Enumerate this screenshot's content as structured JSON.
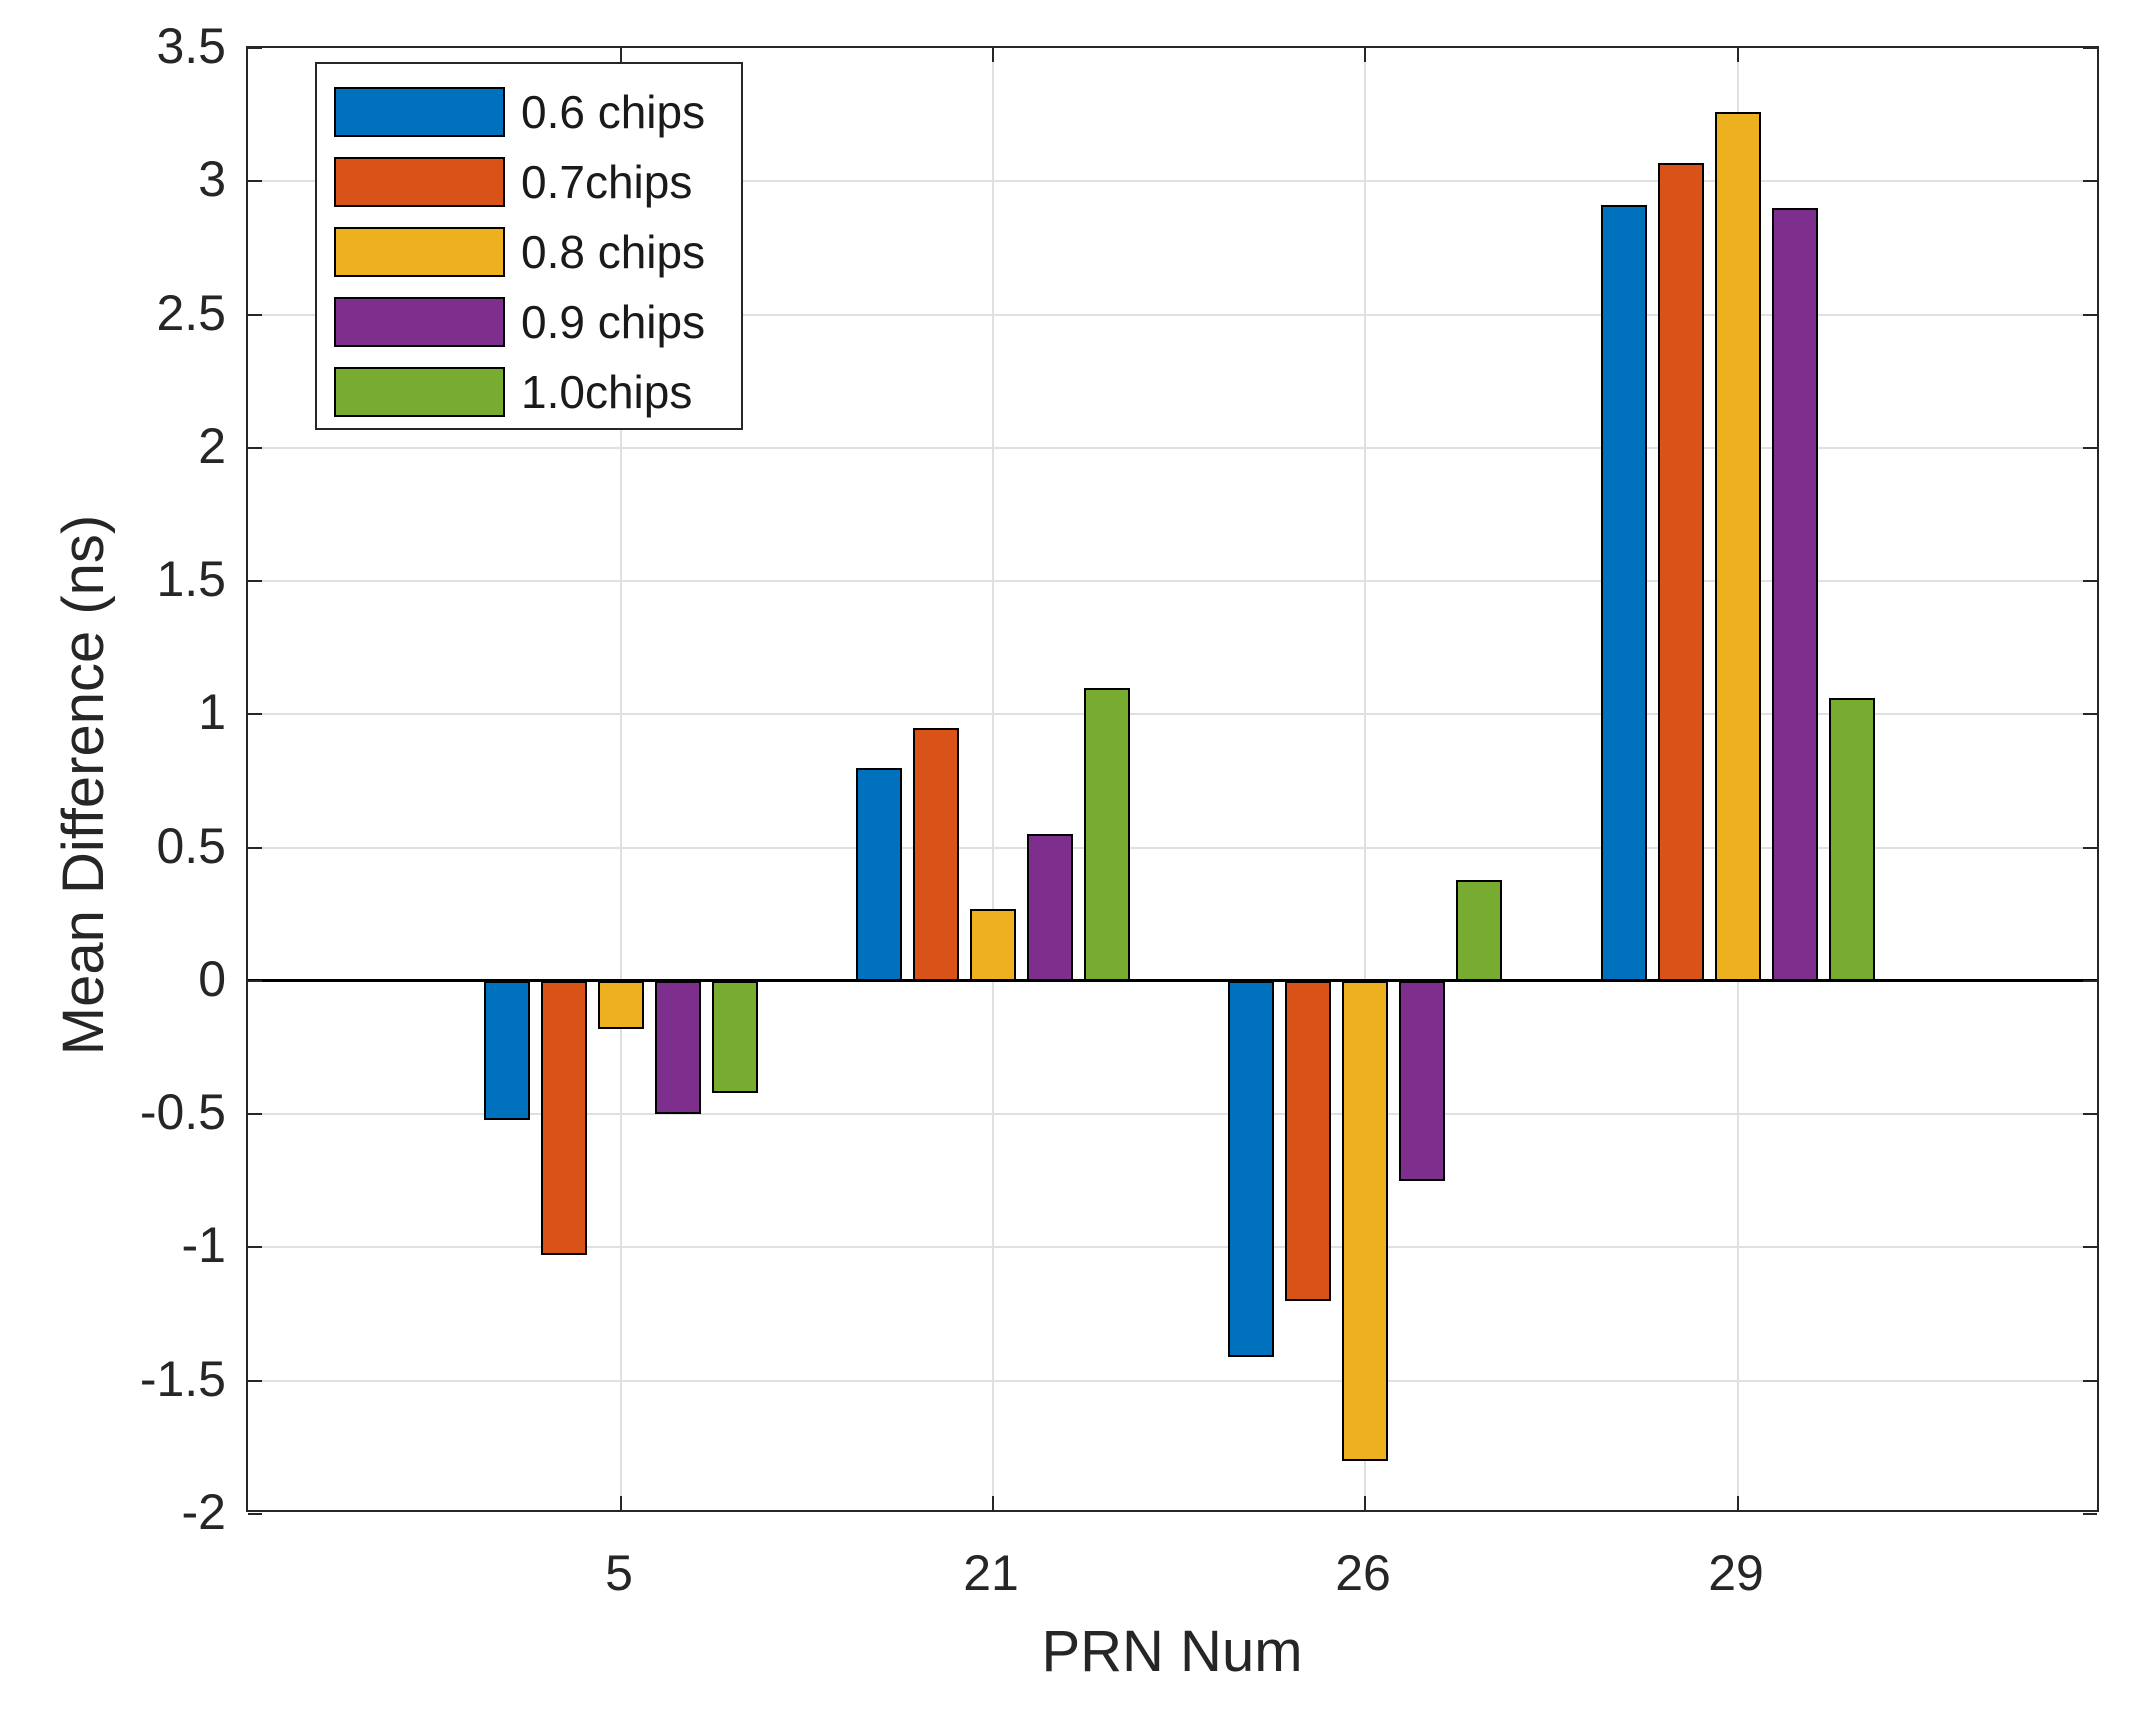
{
  "chart_data": {
    "type": "bar",
    "title": "",
    "xlabel": "PRN Num",
    "ylabel": "Mean Difference (ns)",
    "categories": [
      "5",
      "21",
      "26",
      "29"
    ],
    "series": [
      {
        "name": "0.6 chips",
        "color": "#0072BD",
        "values": [
          -0.52,
          0.8,
          -1.41,
          2.91
        ]
      },
      {
        "name": "0.7chips",
        "color": "#D95319",
        "values": [
          -1.03,
          0.95,
          -1.2,
          3.07
        ]
      },
      {
        "name": "0.8 chips",
        "color": "#EDB120",
        "values": [
          -0.18,
          0.27,
          -1.8,
          3.26
        ]
      },
      {
        "name": "0.9 chips",
        "color": "#7E2F8E",
        "values": [
          -0.5,
          0.55,
          -0.75,
          2.9
        ]
      },
      {
        "name": "1.0chips",
        "color": "#77AC30",
        "values": [
          -0.42,
          1.1,
          0.38,
          1.06
        ]
      }
    ],
    "ylim": [
      -2,
      3.5
    ],
    "ytick_step": 0.5,
    "grid": true,
    "legend_position": "top-left",
    "colors": {
      "axis": "#262626",
      "grid": "#e0e0e0",
      "zero_line": "#000000",
      "background": "#ffffff"
    }
  }
}
